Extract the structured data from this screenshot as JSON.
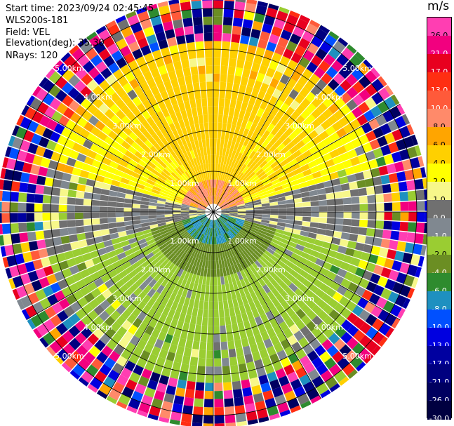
{
  "header": {
    "start_time": "Start time: 2023/09/24 02:45:45",
    "instrument": "WLS200s-181",
    "field": "Field: VEL",
    "elevation": "Elevation(deg): 35.30",
    "nrays": "NRays: 120"
  },
  "colorbar": {
    "unit": "m/s",
    "levels": [
      {
        "label": "26.0",
        "color": "#ff3eb2"
      },
      {
        "label": "21.0",
        "color": "#f2007f"
      },
      {
        "label": "17.0",
        "color": "#e8001f"
      },
      {
        "label": "13.0",
        "color": "#ff2e12"
      },
      {
        "label": "10.0",
        "color": "#ff5a3a"
      },
      {
        "label": "8.0",
        "color": "#ff8a6a"
      },
      {
        "label": "6.0",
        "color": "#ffa500"
      },
      {
        "label": "4.0",
        "color": "#ffd000"
      },
      {
        "label": "2.0",
        "color": "#ffff00"
      },
      {
        "label": "1.0",
        "color": "#f7f78a"
      },
      {
        "label": "0.0",
        "color": "#707070"
      },
      {
        "label": "-1.0",
        "color": "#808890"
      },
      {
        "label": "-2.0",
        "color": "#9acd32"
      },
      {
        "label": "-4.0",
        "color": "#6b8e23"
      },
      {
        "label": "-6.0",
        "color": "#2e8b2e"
      },
      {
        "label": "-8.0",
        "color": "#1e90c0"
      },
      {
        "label": "-10.0",
        "color": "#0050ff"
      },
      {
        "label": "-13.0",
        "color": "#0000e0"
      },
      {
        "label": "-17.0",
        "color": "#0000a0"
      },
      {
        "label": "-21.0",
        "color": "#000080"
      },
      {
        "label": "-26.0",
        "color": "#000060"
      },
      {
        "label": "-30.0",
        "color": "#000040"
      }
    ]
  },
  "chart_data": {
    "type": "heatmap",
    "title": "Field: VEL",
    "projection": "polar",
    "field": "VEL",
    "units": "m/s",
    "nrays": 120,
    "elevation_deg": 35.3,
    "range_rings_km": [
      1.0,
      2.0,
      3.0,
      4.0,
      5.0
    ],
    "ring_labels": [
      "1.00km",
      "2.00km",
      "3.00km",
      "4.00km",
      "5.00km"
    ],
    "max_range_km": 5.3,
    "spoke_azimuths_deg": [
      0,
      30,
      60,
      90,
      120,
      150,
      180,
      210,
      240,
      270,
      300,
      330
    ],
    "velocity_pattern": {
      "north_sector_near_range_ms": [
        4.0,
        8.0
      ],
      "north_sector_mid_range_ms": [
        1.0,
        4.0
      ],
      "south_sector_near_range_ms": [
        -8.0,
        -4.0
      ],
      "south_sector_mid_range_ms": [
        -4.0,
        -1.0
      ],
      "east_west_sector_ms": [
        -1.0,
        1.0
      ],
      "clean_signal_limit_km": 4.2
    }
  }
}
